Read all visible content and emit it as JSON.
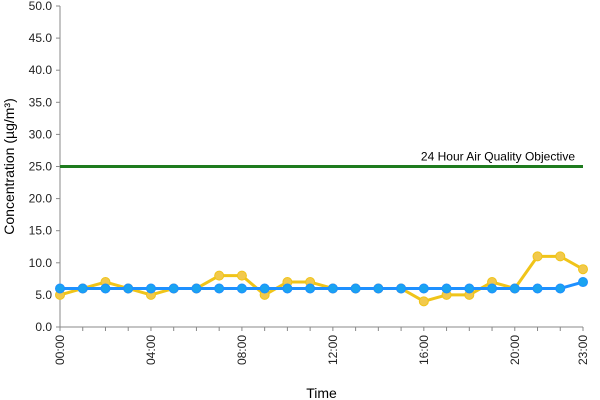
{
  "chart_data": {
    "type": "line",
    "title": "",
    "xlabel": "Time",
    "ylabel": "Concentration (µg/m³)",
    "ylim": [
      0,
      50
    ],
    "y_ticks": [
      "0.0",
      "5.0",
      "10.0",
      "15.0",
      "20.0",
      "25.0",
      "30.0",
      "35.0",
      "40.0",
      "45.0",
      "50.0"
    ],
    "x_tick_labels": [
      "00:00",
      "04:00",
      "08:00",
      "12:00",
      "16:00",
      "20:00",
      "23:00"
    ],
    "x_tick_hours": [
      0,
      4,
      8,
      12,
      16,
      20,
      23
    ],
    "grid": false,
    "legend": "none",
    "x": [
      0,
      1,
      2,
      3,
      4,
      5,
      6,
      7,
      8,
      9,
      10,
      11,
      12,
      13,
      14,
      15,
      16,
      17,
      18,
      19,
      20,
      21,
      22,
      23
    ],
    "series": [
      {
        "color": "#F0C419",
        "marker_color": "#F2C94C",
        "values": [
          5,
          6,
          7,
          6,
          5,
          6,
          6,
          8,
          8,
          5,
          7,
          7,
          6,
          6,
          6,
          6,
          4,
          5,
          5,
          7,
          6,
          11,
          11,
          9
        ]
      },
      {
        "color": "#1E90FF",
        "marker_color": "#1AA3F0",
        "values": [
          6,
          6,
          6,
          6,
          6,
          6,
          6,
          6,
          6,
          6,
          6,
          6,
          6,
          6,
          6,
          6,
          6,
          6,
          6,
          6,
          6,
          6,
          6,
          7
        ]
      }
    ],
    "objective_line": {
      "value": 25,
      "label": "24 Hour Air Quality Objective",
      "color": "#1E7B1E"
    }
  }
}
